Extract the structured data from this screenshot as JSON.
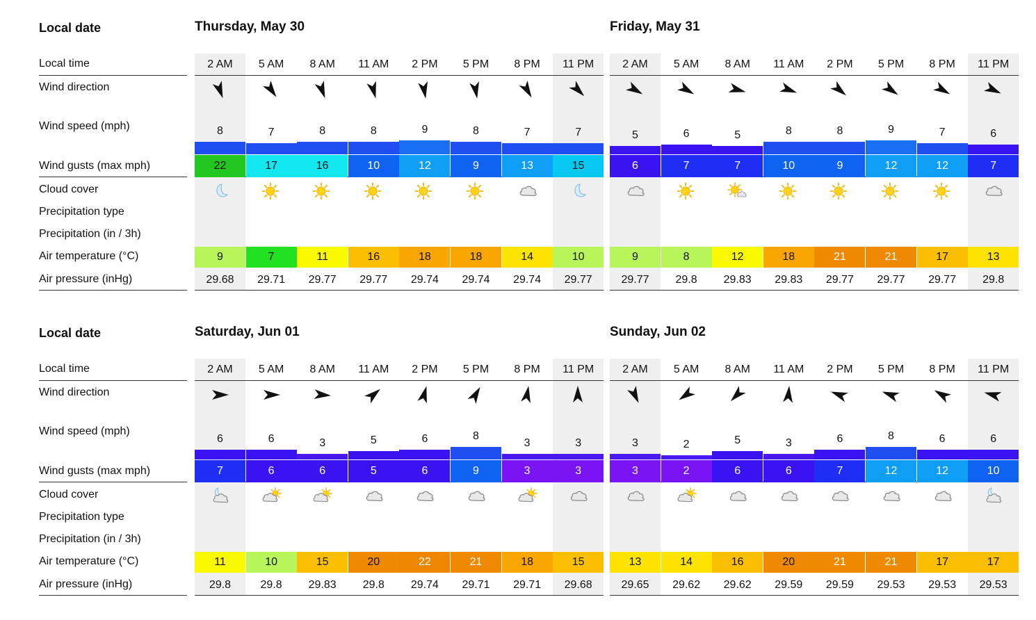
{
  "labels": {
    "local_date": "Local date",
    "local_time": "Local time",
    "wind_direction": "Wind direction",
    "wind_speed": "Wind speed (mph)",
    "wind_gusts": "Wind gusts (max mph)",
    "cloud_cover": "Cloud cover",
    "precip_type": "Precipitation type",
    "precip_amount": "Precipitation (in / 3h)",
    "air_temp": "Air temperature (°C)",
    "air_pressure": "Air pressure (inHg)"
  },
  "times": [
    "2 AM",
    "5 AM",
    "8 AM",
    "11 AM",
    "2 PM",
    "5 PM",
    "8 PM",
    "11 PM"
  ],
  "night_columns": [
    0,
    7
  ],
  "days": [
    {
      "title": "Thursday, May 30",
      "wind_dir_deg": [
        160,
        145,
        160,
        165,
        170,
        170,
        150,
        135
      ],
      "speed": [
        8,
        7,
        8,
        8,
        9,
        8,
        7,
        7
      ],
      "gusts": [
        22,
        17,
        16,
        10,
        12,
        9,
        13,
        15
      ],
      "cloud": [
        "moon",
        "sun",
        "sun",
        "sun",
        "sun",
        "sun",
        "cloud",
        "moon"
      ],
      "temp": [
        9,
        7,
        11,
        16,
        18,
        18,
        14,
        10
      ],
      "pressure": [
        "29.68",
        "29.71",
        "29.77",
        "29.77",
        "29.74",
        "29.74",
        "29.74",
        "29.77"
      ]
    },
    {
      "title": "Friday, May 31",
      "wind_dir_deg": [
        120,
        120,
        105,
        110,
        130,
        125,
        120,
        115
      ],
      "speed": [
        5,
        6,
        5,
        8,
        8,
        9,
        7,
        6
      ],
      "gusts": [
        6,
        7,
        7,
        10,
        9,
        12,
        12,
        7
      ],
      "cloud": [
        "cloud",
        "sun",
        "sun-cloud-small",
        "sun",
        "sun",
        "sun",
        "sun",
        "cloud"
      ],
      "temp": [
        9,
        8,
        12,
        18,
        21,
        21,
        17,
        13
      ],
      "pressure": [
        "29.77",
        "29.8",
        "29.83",
        "29.83",
        "29.77",
        "29.77",
        "29.77",
        "29.8"
      ]
    },
    {
      "title": "Saturday, Jun 01",
      "wind_dir_deg": [
        90,
        90,
        95,
        50,
        15,
        30,
        10,
        0
      ],
      "speed": [
        6,
        6,
        3,
        5,
        6,
        8,
        3,
        3
      ],
      "gusts": [
        7,
        6,
        6,
        5,
        6,
        9,
        3,
        3
      ],
      "cloud": [
        "moon-cloud",
        "sun-cloud",
        "sun-cloud",
        "cloud",
        "cloud",
        "cloud",
        "sun-cloud",
        "cloud"
      ],
      "temp": [
        11,
        10,
        15,
        20,
        22,
        21,
        18,
        15
      ],
      "pressure": [
        "29.8",
        "29.8",
        "29.83",
        "29.8",
        "29.74",
        "29.71",
        "29.71",
        "29.68"
      ]
    },
    {
      "title": "Sunday, Jun 02",
      "wind_dir_deg": [
        155,
        235,
        225,
        5,
        290,
        290,
        300,
        285
      ],
      "speed": [
        3,
        2,
        5,
        3,
        6,
        8,
        6,
        6
      ],
      "gusts": [
        3,
        2,
        6,
        6,
        7,
        12,
        12,
        10
      ],
      "cloud": [
        "cloud",
        "sun-cloud",
        "cloud",
        "cloud",
        "cloud",
        "cloud",
        "cloud",
        "moon-cloud"
      ],
      "temp": [
        13,
        14,
        16,
        20,
        21,
        21,
        17,
        17
      ],
      "pressure": [
        "29.65",
        "29.62",
        "29.62",
        "29.59",
        "29.59",
        "29.53",
        "29.53",
        "29.53"
      ]
    }
  ]
}
